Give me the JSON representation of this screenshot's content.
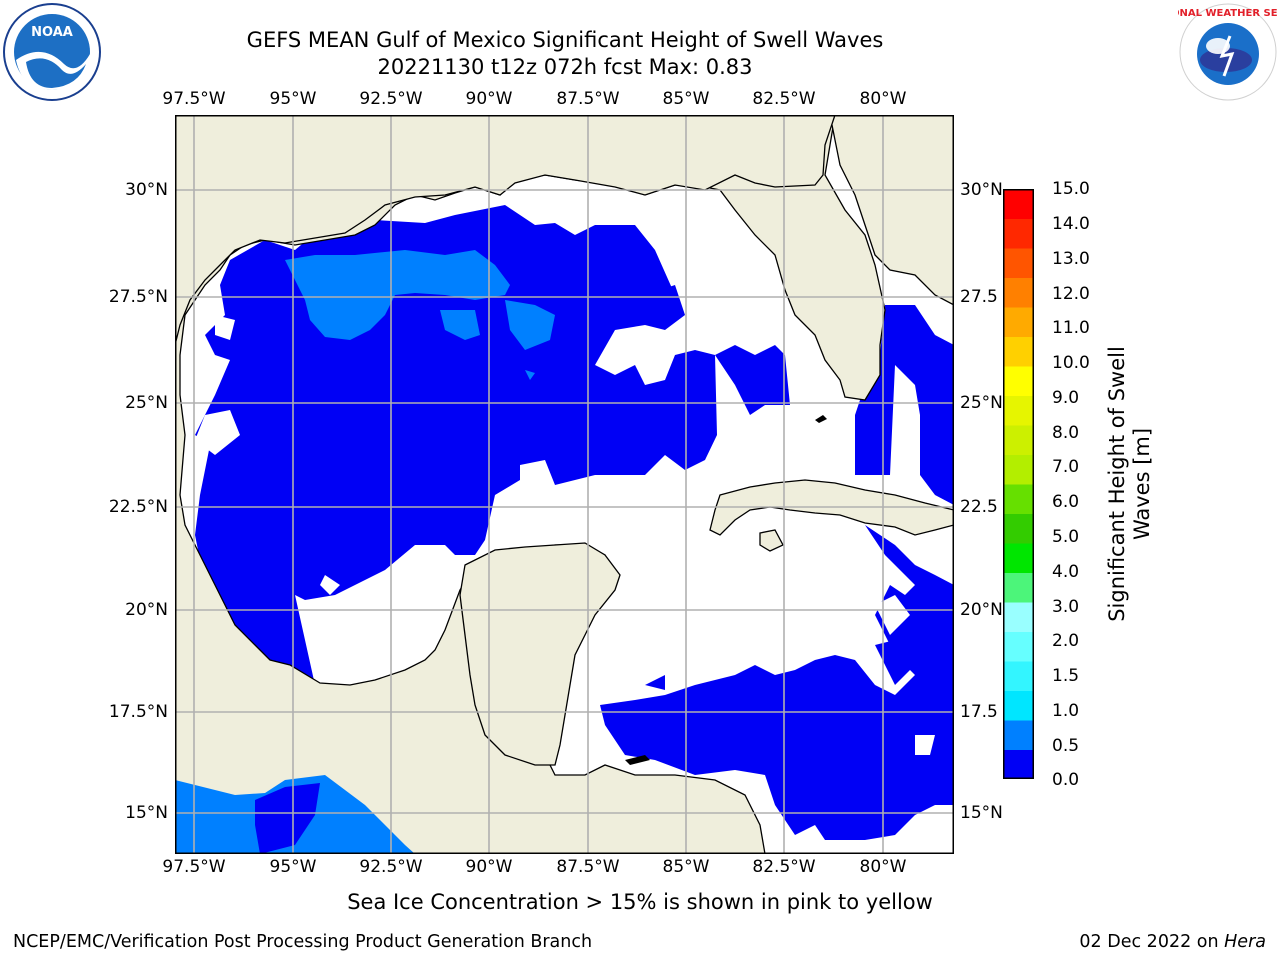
{
  "title": {
    "line1": "GEFS MEAN Gulf of Mexico Significant Height of Swell Waves",
    "line2": "20221130 t12z 072h fcst   Max: 0.83"
  },
  "map": {
    "lon_labels": [
      "97.5°W",
      "95°W",
      "92.5°W",
      "90°W",
      "87.5°W",
      "85°W",
      "82.5°W",
      "80°W"
    ],
    "lat_labels_left": [
      "30°N",
      "27.5°N",
      "25°N",
      "22.5°N",
      "20°N",
      "17.5°N",
      "15°N"
    ],
    "lat_labels_right": [
      "30°N",
      "27.5",
      "25°N",
      "22.5",
      "20°N",
      "17.5",
      "15°N"
    ],
    "colors": {
      "land": "#efeedc",
      "ocean_low": "#0000f5",
      "ocean_mid": "#0080ff",
      "no_data": "#ffffff",
      "grid": "#b0b0b0"
    }
  },
  "colorbar": {
    "label_line1": "Significant Height of Swell",
    "label_line2": "Waves [m]",
    "ticks": [
      "15.0",
      "14.0",
      "13.0",
      "12.0",
      "11.0",
      "10.0",
      "9.0",
      "8.0",
      "7.0",
      "6.0",
      "5.0",
      "4.0",
      "3.0",
      "2.0",
      "1.5",
      "1.0",
      "0.5",
      "0.0"
    ],
    "colors_bottom_to_top": [
      "#0000f5",
      "#0080ff",
      "#00e6ff",
      "#33f5ff",
      "#66ffff",
      "#99ffff",
      "#4cf57a",
      "#00e600",
      "#33cc00",
      "#66e000",
      "#b3ee00",
      "#ccf000",
      "#e6f500",
      "#ffff00",
      "#ffd000",
      "#ffaa00",
      "#ff8000",
      "#ff5500",
      "#ff2800",
      "#ff0000"
    ]
  },
  "note": "Sea Ice Concentration > 15% is shown in pink to yellow",
  "footer": {
    "left": "NCEP/EMC/Verification Post Processing Product Generation Branch",
    "right_date": "02 Dec 2022 on ",
    "right_host": "Hera"
  },
  "logos": {
    "noaa_text": "NOAA",
    "nws_text": "NATIONAL WEATHER SERVICE"
  }
}
